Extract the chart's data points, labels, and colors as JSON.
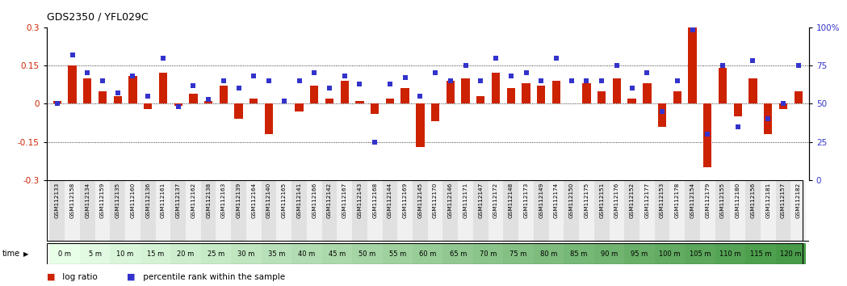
{
  "title": "GDS2350 / YFL029C",
  "categories": [
    "GSM112133",
    "GSM112158",
    "GSM112134",
    "GSM112159",
    "GSM112135",
    "GSM112160",
    "GSM112136",
    "GSM112161",
    "GSM112137",
    "GSM112162",
    "GSM112138",
    "GSM112163",
    "GSM112139",
    "GSM112164",
    "GSM112140",
    "GSM112165",
    "GSM112141",
    "GSM112166",
    "GSM112142",
    "GSM112167",
    "GSM112143",
    "GSM112168",
    "GSM112144",
    "GSM112169",
    "GSM112145",
    "GSM112170",
    "GSM112146",
    "GSM112171",
    "GSM112147",
    "GSM112172",
    "GSM112148",
    "GSM112173",
    "GSM112149",
    "GSM112174",
    "GSM112150",
    "GSM112175",
    "GSM112151",
    "GSM112176",
    "GSM112152",
    "GSM112177",
    "GSM112153",
    "GSM112178",
    "GSM112154",
    "GSM112179",
    "GSM112155",
    "GSM112180",
    "GSM112156",
    "GSM112181",
    "GSM112157",
    "GSM112182"
  ],
  "time_labels": [
    "0 m",
    "5 m",
    "10 m",
    "15 m",
    "20 m",
    "25 m",
    "30 m",
    "35 m",
    "40 m",
    "45 m",
    "50 m",
    "55 m",
    "60 m",
    "65 m",
    "70 m",
    "75 m",
    "80 m",
    "85 m",
    "90 m",
    "95 m",
    "100 m",
    "105 m",
    "110 m",
    "115 m",
    "120 m"
  ],
  "log_ratio": [
    0.01,
    0.15,
    0.1,
    0.05,
    0.03,
    0.11,
    -0.02,
    0.12,
    -0.01,
    0.04,
    0.01,
    0.07,
    -0.06,
    0.02,
    -0.12,
    0.0,
    -0.03,
    0.07,
    0.02,
    0.09,
    0.01,
    -0.04,
    0.02,
    0.06,
    -0.17,
    -0.07,
    0.09,
    0.1,
    0.03,
    0.12,
    0.06,
    0.08,
    0.07,
    0.09,
    0.0,
    0.08,
    0.05,
    0.1,
    0.02,
    0.08,
    -0.09,
    0.05,
    0.3,
    -0.25,
    0.14,
    -0.05,
    0.1,
    -0.12,
    -0.02,
    0.05
  ],
  "percentile": [
    50,
    82,
    70,
    65,
    57,
    68,
    55,
    80,
    48,
    62,
    53,
    65,
    60,
    68,
    65,
    52,
    65,
    70,
    60,
    68,
    63,
    25,
    63,
    67,
    55,
    70,
    65,
    75,
    65,
    80,
    68,
    70,
    65,
    80,
    65,
    65,
    65,
    75,
    60,
    70,
    45,
    65,
    98,
    30,
    75,
    35,
    78,
    40,
    50,
    75
  ],
  "ylim": [
    -0.3,
    0.3
  ],
  "yticks_left": [
    -0.3,
    -0.15,
    0.0,
    0.15,
    0.3
  ],
  "ytick_labels_left": [
    "-0.3",
    "-0.15",
    "0",
    "0.15",
    "0.3"
  ],
  "right_ytick_pct": [
    0,
    25,
    50,
    75,
    100
  ],
  "right_ylabels": [
    "0",
    "25",
    "50",
    "75",
    "100%"
  ],
  "bar_color": "#cc2200",
  "dot_color": "#3333cc",
  "chart_bg": "#ffffff",
  "grid_color": "#000000"
}
